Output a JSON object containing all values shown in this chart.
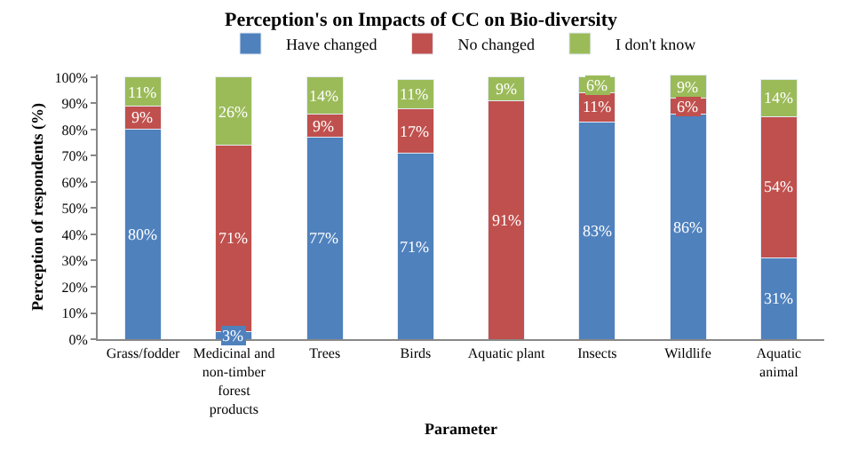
{
  "chart_data": {
    "type": "bar",
    "stacked": true,
    "title": "Perception's on Impacts of CC on Bio-diversity",
    "xlabel": "Parameter",
    "ylabel": "Perception of respondents (%)",
    "categories": [
      "Grass/fodder",
      "Medicinal and non-timber forest products",
      "Trees",
      "Birds",
      "Aquatic plant",
      "Insects",
      "Wildlife",
      "Aquatic animal"
    ],
    "series": [
      {
        "name": "Have changed",
        "color": "#4f81bd",
        "values": [
          80,
          3,
          77,
          71,
          0,
          83,
          86,
          31
        ],
        "value_labels": [
          "80%",
          "3%",
          "77%",
          "71%",
          null,
          "83%",
          "86%",
          "31%"
        ]
      },
      {
        "name": "No changed",
        "color": "#c0504d",
        "values": [
          9,
          71,
          9,
          17,
          91,
          11,
          6,
          54
        ],
        "value_labels": [
          "9%",
          "71%",
          "9%",
          "17%",
          "91%",
          "11%",
          "6%",
          "54%"
        ]
      },
      {
        "name": "I don't know",
        "color": "#9bbb59",
        "values": [
          11,
          26,
          14,
          11,
          9,
          6,
          9,
          14
        ],
        "value_labels": [
          "11%",
          "26%",
          "14%",
          "11%",
          "9%",
          "6%",
          "9%",
          "14%"
        ]
      }
    ],
    "ylim": [
      0,
      101
    ],
    "yticks": [
      {
        "value": 0,
        "label": "0%"
      },
      {
        "value": 10,
        "label": "10%"
      },
      {
        "value": 20,
        "label": "20%"
      },
      {
        "value": 30,
        "label": "30%"
      },
      {
        "value": 40,
        "label": "40%"
      },
      {
        "value": 50,
        "label": "50%"
      },
      {
        "value": 60,
        "label": "60%"
      },
      {
        "value": 70,
        "label": "70%"
      },
      {
        "value": 80,
        "label": "80%"
      },
      {
        "value": 90,
        "label": "90%"
      },
      {
        "value": 100,
        "label": "100%"
      }
    ],
    "legend": "top"
  }
}
